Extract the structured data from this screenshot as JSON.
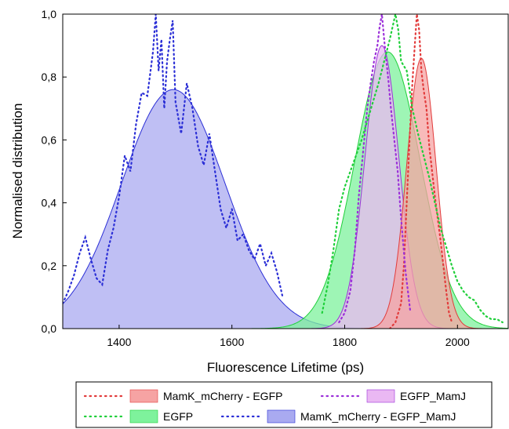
{
  "chart_data": {
    "type": "area",
    "title": "",
    "xlabel": "Fluorescence Lifetime (ps)",
    "ylabel": "Normalised distribution",
    "xlim": [
      1300,
      2090
    ],
    "ylim": [
      0,
      1.0
    ],
    "x_ticks": [
      1400,
      1600,
      1800,
      2000
    ],
    "x_tick_labels": [
      "1400",
      "1600",
      "1800",
      "2000"
    ],
    "y_ticks": [
      0,
      0.2,
      0.4,
      0.6,
      0.8,
      1.0
    ],
    "y_tick_labels": [
      "0,0",
      "0,2",
      "0,4",
      "0,6",
      "0,8",
      "1,0"
    ],
    "legend_position": "bottom",
    "series": [
      {
        "name": "MamK_mCherry - EGFP",
        "color": "#e23b3b",
        "fill": "#f6a3a3",
        "fit": {
          "center": 1936,
          "height": 0.86,
          "sigma": 26
        },
        "raw": {
          "x": [
            1880,
            1890,
            1900,
            1905,
            1910,
            1915,
            1920,
            1925,
            1928,
            1932,
            1936,
            1940,
            1945,
            1950,
            1955,
            1960,
            1965,
            1970,
            1975,
            1980,
            1985,
            1990
          ],
          "y": [
            0.0,
            0.02,
            0.08,
            0.2,
            0.4,
            0.6,
            0.78,
            0.92,
            1.0,
            0.95,
            0.82,
            0.76,
            0.7,
            0.58,
            0.5,
            0.42,
            0.35,
            0.28,
            0.2,
            0.12,
            0.05,
            0.02
          ]
        }
      },
      {
        "name": "EGFP_MamJ",
        "color": "#9b30d9",
        "fill": "#eab8f3",
        "fit": {
          "center": 1866,
          "height": 0.9,
          "sigma": 30
        },
        "raw": {
          "x": [
            1790,
            1800,
            1810,
            1818,
            1825,
            1832,
            1840,
            1846,
            1852,
            1858,
            1862,
            1866,
            1870,
            1874,
            1878,
            1882,
            1888,
            1894,
            1900,
            1908,
            1916
          ],
          "y": [
            0.02,
            0.05,
            0.12,
            0.25,
            0.42,
            0.55,
            0.7,
            0.78,
            0.85,
            0.9,
            0.96,
            1.0,
            0.92,
            0.85,
            0.78,
            0.7,
            0.6,
            0.5,
            0.35,
            0.18,
            0.06
          ]
        }
      },
      {
        "name": "EGFP",
        "color": "#1fcf3a",
        "fill": "#7ef29c",
        "fit": {
          "center": 1876,
          "height": 0.88,
          "sigma": 58
        },
        "raw": {
          "x": [
            1760,
            1770,
            1780,
            1790,
            1800,
            1810,
            1820,
            1830,
            1840,
            1850,
            1860,
            1870,
            1880,
            1890,
            1895,
            1900,
            1910,
            1920,
            1930,
            1940,
            1950,
            1960,
            1970,
            1980,
            1990,
            2000,
            2010,
            2020,
            2030,
            2040,
            2050,
            2060,
            2070,
            2080
          ],
          "y": [
            0.05,
            0.14,
            0.25,
            0.38,
            0.45,
            0.5,
            0.55,
            0.6,
            0.66,
            0.72,
            0.78,
            0.85,
            0.92,
            1.0,
            0.95,
            0.85,
            0.82,
            0.7,
            0.62,
            0.55,
            0.48,
            0.4,
            0.32,
            0.26,
            0.2,
            0.15,
            0.12,
            0.1,
            0.09,
            0.06,
            0.04,
            0.03,
            0.03,
            0.02
          ]
        }
      },
      {
        "name": "MamK_mCherry - EGFP_MamJ",
        "color": "#2b2fd6",
        "fill": "#a9aaf0",
        "fit": {
          "center": 1496,
          "height": 0.76,
          "sigma": 92
        },
        "raw": {
          "x": [
            1300,
            1310,
            1320,
            1330,
            1340,
            1350,
            1360,
            1370,
            1380,
            1390,
            1400,
            1410,
            1420,
            1430,
            1440,
            1450,
            1460,
            1465,
            1470,
            1475,
            1480,
            1485,
            1490,
            1495,
            1500,
            1510,
            1520,
            1530,
            1540,
            1550,
            1560,
            1570,
            1580,
            1590,
            1600,
            1610,
            1620,
            1630,
            1640,
            1650,
            1660,
            1670,
            1680,
            1690
          ],
          "y": [
            0.08,
            0.12,
            0.17,
            0.24,
            0.29,
            0.22,
            0.16,
            0.14,
            0.25,
            0.32,
            0.42,
            0.55,
            0.5,
            0.65,
            0.75,
            0.74,
            0.88,
            1.0,
            0.82,
            0.92,
            0.7,
            0.85,
            0.92,
            0.98,
            0.72,
            0.62,
            0.78,
            0.7,
            0.58,
            0.52,
            0.62,
            0.5,
            0.38,
            0.32,
            0.38,
            0.28,
            0.3,
            0.25,
            0.22,
            0.27,
            0.2,
            0.24,
            0.18,
            0.1
          ]
        }
      }
    ]
  }
}
